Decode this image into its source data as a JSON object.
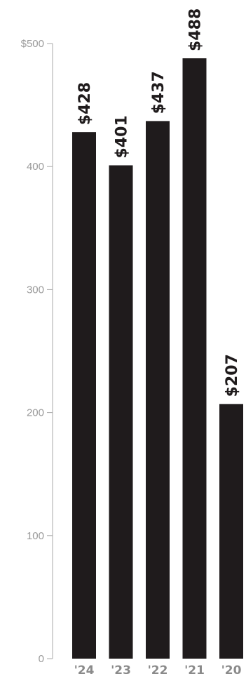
{
  "chart_data": {
    "type": "bar",
    "orientation": "vertical",
    "categories": [
      "'24",
      "'23",
      "'22",
      "'21",
      "'20"
    ],
    "values": [
      428,
      401,
      437,
      488,
      207
    ],
    "data_labels": [
      "$428",
      "$401",
      "$437",
      "$488",
      "$207"
    ],
    "y_tick_values": [
      0,
      100,
      200,
      300,
      400,
      500
    ],
    "y_tick_labels": [
      "0",
      "100",
      "200",
      "300",
      "400",
      "$500"
    ],
    "ylim": [
      0,
      500
    ],
    "bar_color": "#1f1b1c",
    "axis_color": "#a8a8a8",
    "tick_label_color": "#9a9a9a",
    "category_label_color": "#8a8a8a",
    "grid": false,
    "legend": "none"
  }
}
